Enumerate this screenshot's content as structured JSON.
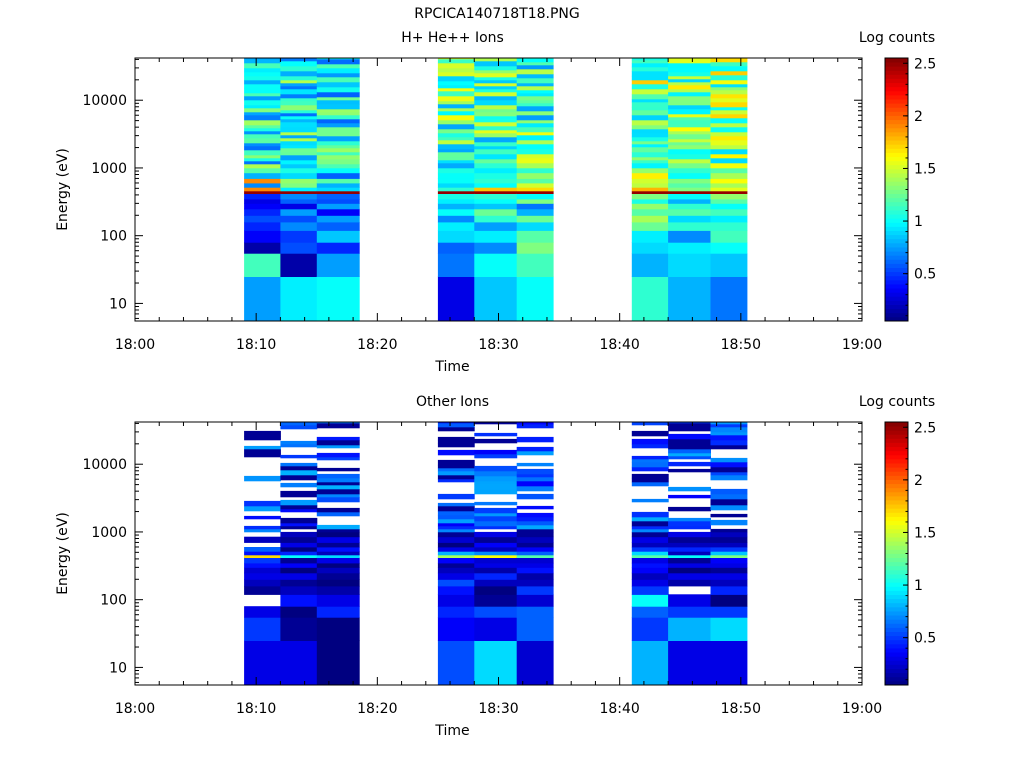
{
  "figure": {
    "title": "RPCICA140718T18.PNG"
  },
  "chart_data": [
    {
      "type": "heatmap",
      "title": "H+ He++ Ions",
      "xlabel": "Time",
      "ylabel": "Energy (eV)",
      "x_range": [
        "18:00",
        "19:00"
      ],
      "x_ticks": [
        "18:00",
        "18:10",
        "18:20",
        "18:30",
        "18:40",
        "18:50",
        "19:00"
      ],
      "y_scale": "log",
      "y_range": [
        5.5,
        42000
      ],
      "y_ticks": [
        "10",
        "100",
        "1000",
        "10000"
      ],
      "colorbar": {
        "label": "Log counts",
        "range": [
          0.05,
          2.55
        ],
        "ticks": [
          "0.5",
          "1",
          "1.5",
          "2",
          "2.5"
        ],
        "colormap": "jet"
      },
      "time_bins": [
        [
          "18:09",
          "18:12"
        ],
        [
          "18:12",
          "18:15"
        ],
        [
          "18:15",
          "18:18.5"
        ],
        [
          "18:25",
          "18:28"
        ],
        [
          "18:28",
          "18:31.5"
        ],
        [
          "18:31.5",
          "18:34.5"
        ],
        [
          "18:41",
          "18:44"
        ],
        [
          "18:44",
          "18:47.5"
        ],
        [
          "18:47.5",
          "18:50.5"
        ]
      ],
      "energy_bins_eV": [
        5.5,
        25,
        55,
        80,
        120,
        160,
        200,
        250,
        300,
        350,
        420,
        460,
        520,
        600,
        700,
        850,
        1000,
        40000
      ],
      "low_energy_values": [
        [
          0.75,
          1.15,
          0.15,
          0.35,
          0.45,
          0.55,
          0.45,
          0.35,
          0.3,
          0.45,
          2.5,
          1.9,
          0.7,
          1.9,
          0.8,
          1.2
        ],
        [
          0.95,
          0.15,
          0.55,
          0.5,
          0.7,
          0.55,
          0.75,
          0.3,
          0.6,
          0.7,
          2.5,
          0.95,
          1.3,
          1.35,
          0.9,
          1.05
        ],
        [
          1.0,
          0.75,
          0.45,
          0.85,
          0.6,
          0.75,
          0.35,
          0.75,
          0.55,
          0.6,
          2.5,
          0.9,
          0.8,
          1.2,
          0.6,
          1.0
        ],
        [
          0.3,
          0.65,
          0.6,
          0.9,
          0.95,
          0.7,
          1.0,
          0.8,
          0.95,
          1.05,
          2.5,
          1.1,
          0.9,
          1.0,
          1.0,
          1.05
        ],
        [
          0.85,
          1.0,
          0.7,
          0.95,
          0.75,
          1.1,
          1.25,
          0.85,
          1.0,
          1.1,
          2.5,
          1.75,
          1.0,
          1.1,
          1.05,
          0.95
        ],
        [
          1.0,
          1.15,
          1.3,
          1.2,
          0.9,
          1.25,
          0.8,
          0.65,
          1.3,
          1.0,
          2.5,
          1.7,
          1.5,
          1.2,
          1.35,
          1.1
        ],
        [
          1.1,
          0.8,
          0.9,
          0.95,
          1.25,
          1.4,
          1.2,
          1.35,
          1.05,
          1.3,
          2.5,
          1.8,
          1.45,
          1.5,
          1.65,
          1.35
        ],
        [
          0.8,
          0.9,
          0.95,
          0.7,
          1.1,
          0.9,
          1.2,
          1.1,
          0.8,
          1.0,
          2.5,
          1.3,
          1.2,
          1.3,
          1.0,
          1.1
        ],
        [
          0.65,
          0.85,
          1.0,
          1.15,
          1.1,
          0.95,
          1.15,
          1.0,
          1.2,
          1.35,
          2.5,
          1.55,
          1.4,
          1.6,
          1.4,
          1.2
        ]
      ]
    },
    {
      "type": "heatmap",
      "title": "Other Ions",
      "xlabel": "Time",
      "ylabel": "Energy (eV)",
      "x_range": [
        "18:00",
        "19:00"
      ],
      "x_ticks": [
        "18:00",
        "18:10",
        "18:20",
        "18:30",
        "18:40",
        "18:50",
        "19:00"
      ],
      "y_scale": "log",
      "y_range": [
        5.5,
        42000
      ],
      "y_ticks": [
        "10",
        "100",
        "1000",
        "10000"
      ],
      "colorbar": {
        "label": "Log counts",
        "range": [
          0.05,
          2.55
        ],
        "ticks": [
          "0.5",
          "1",
          "1.5",
          "2",
          "2.5"
        ],
        "colormap": "jet"
      },
      "time_bins": [
        [
          "18:09",
          "18:12"
        ],
        [
          "18:12",
          "18:15"
        ],
        [
          "18:15",
          "18:18.5"
        ],
        [
          "18:25",
          "18:28"
        ],
        [
          "18:28",
          "18:31.5"
        ],
        [
          "18:31.5",
          "18:34.5"
        ],
        [
          "18:41",
          "18:44"
        ],
        [
          "18:44",
          "18:47.5"
        ],
        [
          "18:47.5",
          "18:50.5"
        ]
      ],
      "energy_bins_eV": [
        5.5,
        25,
        55,
        80,
        120,
        160,
        200,
        250,
        300,
        350,
        420,
        460,
        520,
        600,
        700,
        850,
        1000,
        40000
      ],
      "low_energy_values": [
        [
          0.3,
          0.5,
          0.3,
          null,
          0.1,
          0.2,
          0.3,
          0.25,
          0.4,
          0.5,
          1.7,
          0.4,
          0.6,
          null,
          0.2,
          null
        ],
        [
          0.3,
          0.1,
          0.05,
          0.4,
          0.2,
          0.1,
          0.3,
          0.05,
          0.35,
          0.1,
          1.0,
          0.45,
          0.05,
          0.3,
          0.1,
          0.2
        ],
        [
          0.05,
          0.05,
          0.45,
          0.3,
          0.15,
          0.05,
          0.1,
          0.2,
          0.05,
          0.3,
          0.9,
          0.2,
          0.4,
          0.1,
          0.3,
          0.05
        ],
        [
          0.55,
          0.35,
          0.45,
          0.3,
          0.4,
          0.55,
          0.3,
          0.2,
          0.1,
          0.35,
          1.4,
          0.8,
          0.3,
          0.05,
          0.25,
          0.1
        ],
        [
          0.9,
          0.3,
          0.55,
          0.1,
          0.05,
          0.2,
          0.45,
          0.15,
          0.3,
          0.25,
          1.6,
          0.7,
          0.2,
          0.35,
          0.1,
          0.3
        ],
        [
          0.25,
          0.6,
          0.6,
          0.25,
          0.5,
          0.2,
          0.15,
          0.4,
          0.3,
          0.25,
          1.2,
          0.6,
          0.35,
          0.1,
          0.2,
          0.1
        ],
        [
          0.8,
          0.5,
          0.6,
          1.0,
          0.5,
          0.3,
          0.2,
          0.35,
          0.4,
          0.3,
          1.2,
          0.9,
          0.5,
          0.2,
          0.3,
          0.1
        ],
        [
          0.3,
          0.8,
          0.5,
          0.3,
          null,
          0.15,
          0.3,
          0.05,
          0.3,
          0.1,
          1.0,
          0.2,
          0.45,
          0.2,
          0.1,
          0.3
        ],
        [
          0.3,
          0.9,
          0.5,
          0.05,
          0.45,
          0.2,
          0.3,
          0.1,
          0.3,
          0.35,
          1.3,
          0.85,
          0.5,
          0.2,
          0.1,
          0.2
        ]
      ]
    }
  ]
}
